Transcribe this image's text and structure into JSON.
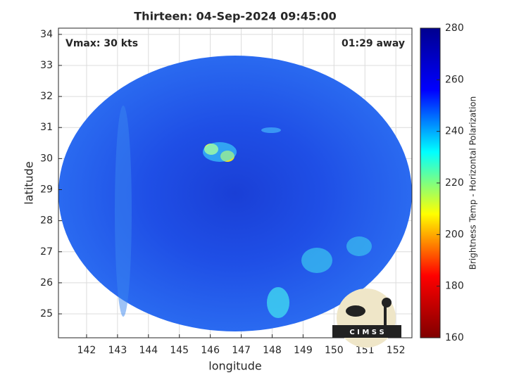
{
  "chart_data": {
    "type": "heatmap",
    "title": "Thirteen: 04-Sep-2024 09:45:00",
    "annotations": [
      "Vmax: 30 kts",
      "01:29 away"
    ],
    "xlabel": "longitude",
    "ylabel": "latitude",
    "xlim": [
      141.09,
      152.52
    ],
    "xticks": [
      142,
      143,
      144,
      145,
      146,
      147,
      148,
      149,
      150,
      151,
      152
    ],
    "ylim": [
      24.23,
      34.2
    ],
    "yticks": [
      25,
      26,
      27,
      28,
      29,
      30,
      31,
      32,
      33,
      34
    ],
    "grid": true,
    "colorbar": {
      "label": "Brightness Temp - Horizontal Polarization",
      "lim": [
        160,
        280
      ],
      "ticks": [
        160,
        180,
        200,
        220,
        240,
        260,
        280
      ],
      "colormap": [
        "#800000",
        "#ff0000",
        "#ffff00",
        "#00ffff",
        "#0000ff",
        "#00008f"
      ]
    },
    "logo_text": "C I M S S"
  }
}
